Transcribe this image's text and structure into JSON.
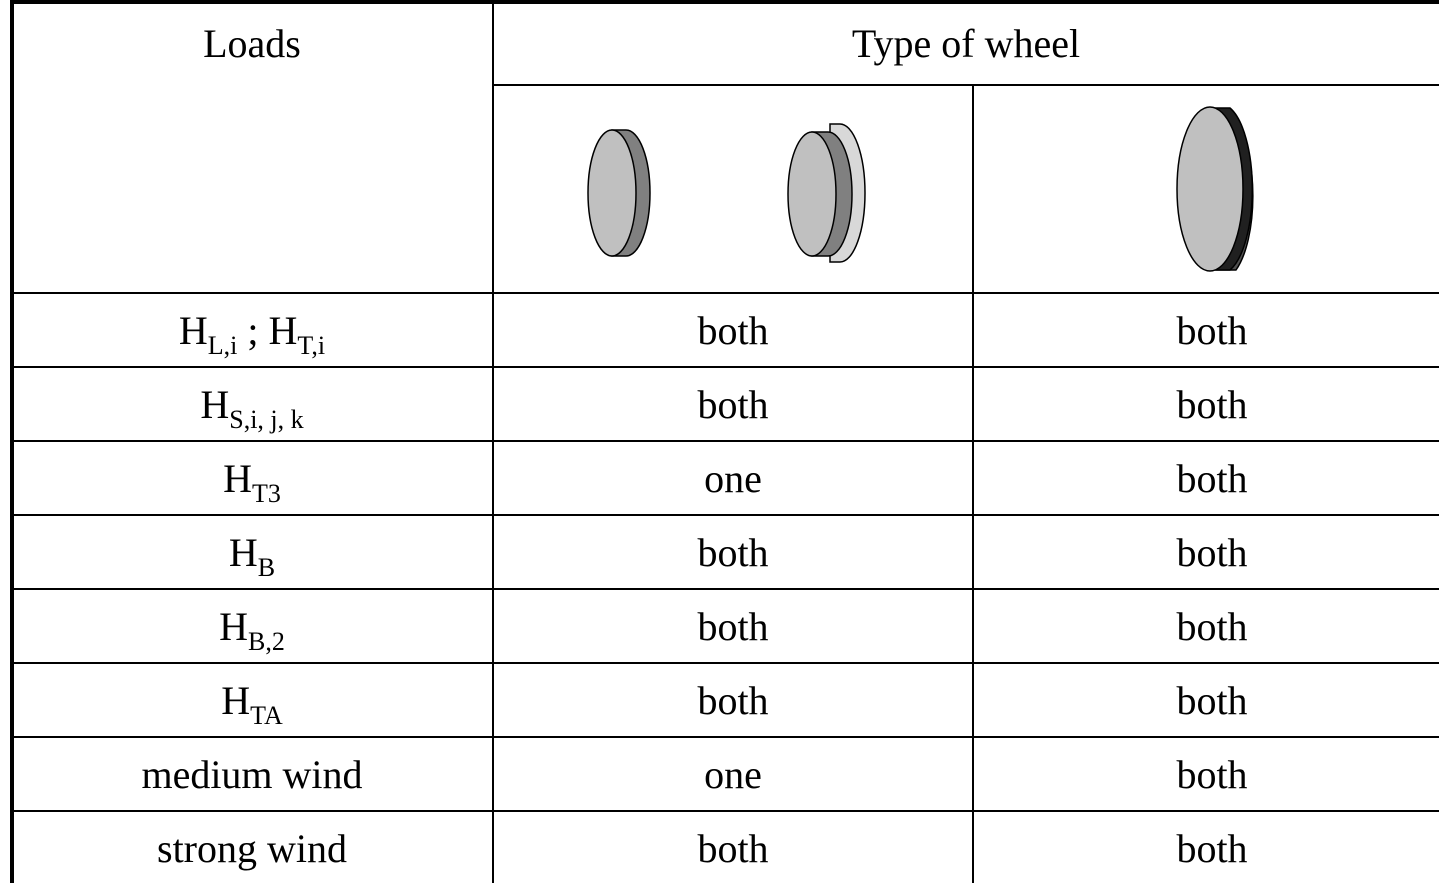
{
  "table": {
    "header": {
      "loads": "Loads",
      "type_of_wheel": "Type of wheel"
    },
    "rows": [
      {
        "label": [
          {
            "text": "H"
          },
          {
            "text": "L,i",
            "sub": true
          },
          {
            "text": " ; H"
          },
          {
            "text": "T,i",
            "sub": true
          }
        ],
        "cells": [
          {
            "text": "both"
          },
          {
            "text": "both"
          }
        ]
      },
      {
        "label": [
          {
            "text": "H"
          },
          {
            "text": "S,i, j, k",
            "sub": true
          }
        ],
        "cells": [
          {
            "text": "both"
          },
          {
            "text": "both"
          }
        ]
      },
      {
        "label": [
          {
            "text": "H"
          },
          {
            "text": "T3",
            "sub": true
          }
        ],
        "cells": [
          {
            "text": "one",
            "color": "#ff00ff"
          },
          {
            "text": "both"
          }
        ]
      },
      {
        "label": [
          {
            "text": "H"
          },
          {
            "text": "B",
            "sub": true
          }
        ],
        "cells": [
          {
            "text": "both"
          },
          {
            "text": "both"
          }
        ]
      },
      {
        "label": [
          {
            "text": "H"
          },
          {
            "text": "B,2",
            "sub": true
          }
        ],
        "cells": [
          {
            "text": "both"
          },
          {
            "text": "both"
          }
        ]
      },
      {
        "label": [
          {
            "text": "H"
          },
          {
            "text": "TA",
            "sub": true
          }
        ],
        "cells": [
          {
            "text": "both"
          },
          {
            "text": "both"
          }
        ]
      },
      {
        "label": [
          {
            "text": "medium wind"
          }
        ],
        "cells": [
          {
            "text": "one",
            "color": "#ff00ff"
          },
          {
            "text": "both"
          }
        ]
      },
      {
        "label": [
          {
            "text": "strong wind"
          }
        ],
        "cells": [
          {
            "text": "both"
          },
          {
            "text": "both"
          }
        ]
      }
    ]
  }
}
